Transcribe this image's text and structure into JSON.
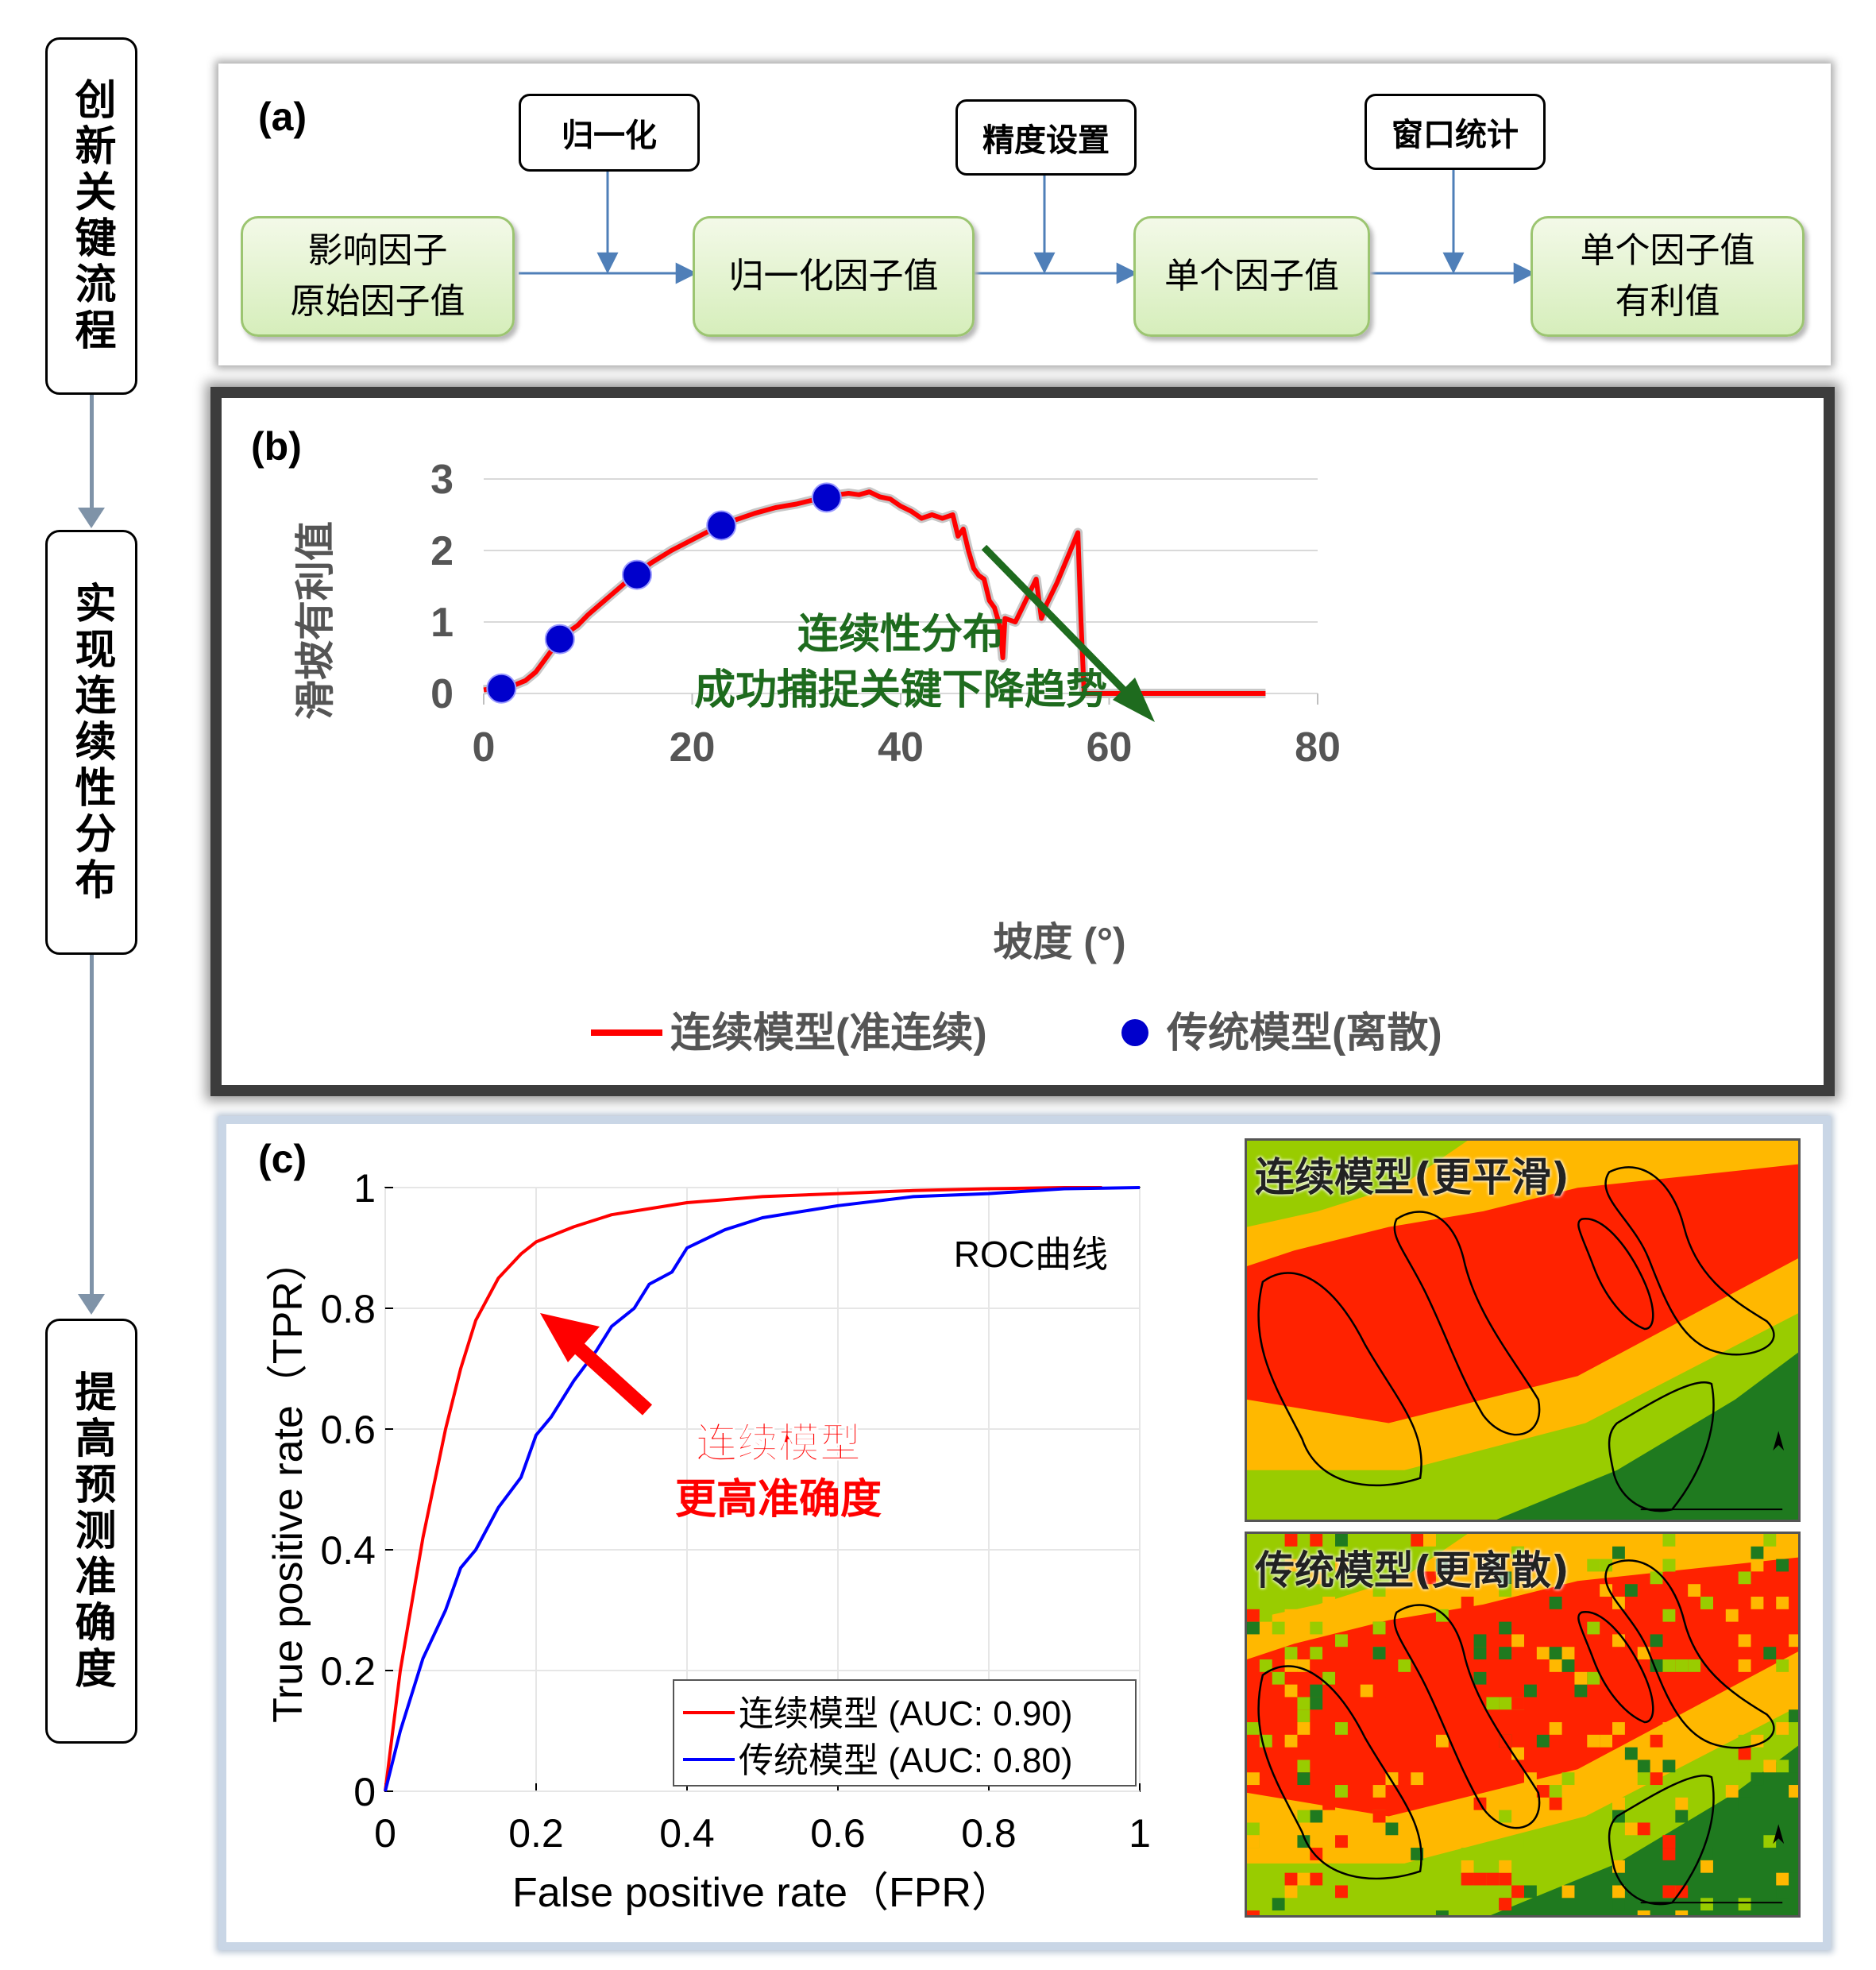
{
  "side_steps": [
    "创新关键流程",
    "实现连续性分布",
    "提高预测准确度"
  ],
  "panel_a": {
    "label": "(a)",
    "flow_boxes": [
      {
        "line1": "影响因子",
        "line2": "原始因子值"
      },
      {
        "line1": "归一化因子值",
        "line2": ""
      },
      {
        "line1": "单个因子值",
        "line2": ""
      },
      {
        "line1": "单个因子值",
        "line2": "有利值"
      }
    ],
    "step_boxes": [
      "归一化",
      "精度设置",
      "窗口统计"
    ]
  },
  "panel_b": {
    "label": "(b)",
    "annotation_line1": "连续性分布",
    "annotation_line2": "成功捕捉关键下降趋势",
    "colors": {
      "continuous": "#ff0000",
      "traditional": "#0000cc",
      "annotation": "#1e6b1e",
      "arrow": "#1e6b1e"
    }
  },
  "panel_c": {
    "label": "(c)",
    "roc_title": "ROC曲线",
    "annotation_line1": "连续模型",
    "annotation_line2": "更高准确度",
    "map_top_label": "连续模型(更平滑)",
    "map_bottom_label": "传统模型(更离散)",
    "colors": {
      "continuous": "#ff0000",
      "traditional": "#0000ff",
      "map_red": "#ff2200",
      "map_orange": "#ffb800",
      "map_green": "#99cc00",
      "map_dark_green": "#1f7a1f"
    }
  },
  "chart_data": [
    {
      "type": "line",
      "xlabel": "坡度 (°)",
      "ylabel": "滑坡有利值",
      "xlim": [
        0,
        80
      ],
      "ylim": [
        0,
        3
      ],
      "x_ticks": [
        0,
        20,
        40,
        60,
        80
      ],
      "y_ticks": [
        0,
        1,
        2,
        3
      ],
      "grid": true,
      "legend_position": "bottom",
      "series": [
        {
          "name": "连续模型(准连续)",
          "style": "line",
          "x": [
            0,
            1,
            2,
            3,
            4,
            5,
            6,
            7,
            8,
            9,
            10,
            12,
            14,
            16,
            18,
            20,
            22,
            24,
            26,
            28,
            30,
            32,
            34,
            35,
            36,
            37,
            38,
            39,
            40,
            41,
            42,
            43,
            44,
            45,
            45.5,
            46,
            46.5,
            47,
            47.5,
            48,
            48.5,
            49,
            49.5,
            49.8,
            50,
            51,
            52,
            53,
            53.5,
            54,
            55,
            56,
            57,
            57.3,
            57.6,
            58,
            60,
            65,
            70,
            75
          ],
          "y": [
            0.05,
            0.07,
            0.1,
            0.12,
            0.18,
            0.3,
            0.5,
            0.7,
            0.85,
            0.95,
            1.1,
            1.35,
            1.6,
            1.82,
            2.0,
            2.15,
            2.3,
            2.42,
            2.52,
            2.6,
            2.65,
            2.72,
            2.78,
            2.8,
            2.78,
            2.82,
            2.75,
            2.72,
            2.62,
            2.55,
            2.45,
            2.5,
            2.45,
            2.5,
            2.2,
            2.3,
            2.0,
            1.75,
            1.65,
            1.6,
            1.3,
            1.2,
            0.95,
            0.5,
            1.05,
            1.0,
            1.3,
            1.6,
            1.05,
            1.25,
            1.55,
            1.9,
            2.25,
            1.0,
            0.0,
            0.0,
            0.0,
            0.0,
            0.0,
            0.0
          ]
        },
        {
          "name": "传统模型(离散)",
          "style": "scatter",
          "x": [
            1.7,
            7.3,
            14.7,
            22.8,
            32.9
          ],
          "y": [
            0.07,
            0.76,
            1.66,
            2.35,
            2.74
          ]
        }
      ]
    },
    {
      "type": "line",
      "xlabel": "False positive rate（FPR）",
      "ylabel": "True positive rate（TPR）",
      "xlim": [
        0,
        1
      ],
      "ylim": [
        0,
        1
      ],
      "x_ticks": [
        "0",
        "0.2",
        "0.4",
        "0.6",
        "0.8",
        "1"
      ],
      "y_ticks": [
        "0",
        "0.2",
        "0.4",
        "0.6",
        "0.8",
        "1"
      ],
      "grid": true,
      "legend_position": "bottom-right",
      "series": [
        {
          "name": "连续模型 (AUC: 0.90)",
          "x": [
            0,
            0.02,
            0.05,
            0.08,
            0.1,
            0.12,
            0.15,
            0.18,
            0.2,
            0.25,
            0.3,
            0.4,
            0.5,
            0.6,
            0.7,
            0.8,
            0.9,
            0.95
          ],
          "y": [
            0,
            0.2,
            0.42,
            0.6,
            0.7,
            0.78,
            0.85,
            0.89,
            0.91,
            0.935,
            0.955,
            0.975,
            0.985,
            0.99,
            0.995,
            0.998,
            1.0,
            1.0
          ]
        },
        {
          "name": "传统模型 (AUC: 0.80)",
          "x": [
            0,
            0.02,
            0.05,
            0.08,
            0.1,
            0.12,
            0.15,
            0.18,
            0.2,
            0.22,
            0.25,
            0.28,
            0.3,
            0.33,
            0.35,
            0.38,
            0.4,
            0.45,
            0.5,
            0.6,
            0.7,
            0.8,
            0.9,
            1.0
          ],
          "y": [
            0,
            0.1,
            0.22,
            0.3,
            0.37,
            0.4,
            0.47,
            0.52,
            0.59,
            0.62,
            0.68,
            0.73,
            0.77,
            0.8,
            0.84,
            0.86,
            0.9,
            0.93,
            0.95,
            0.97,
            0.985,
            0.99,
            0.998,
            1.0
          ]
        }
      ]
    }
  ]
}
